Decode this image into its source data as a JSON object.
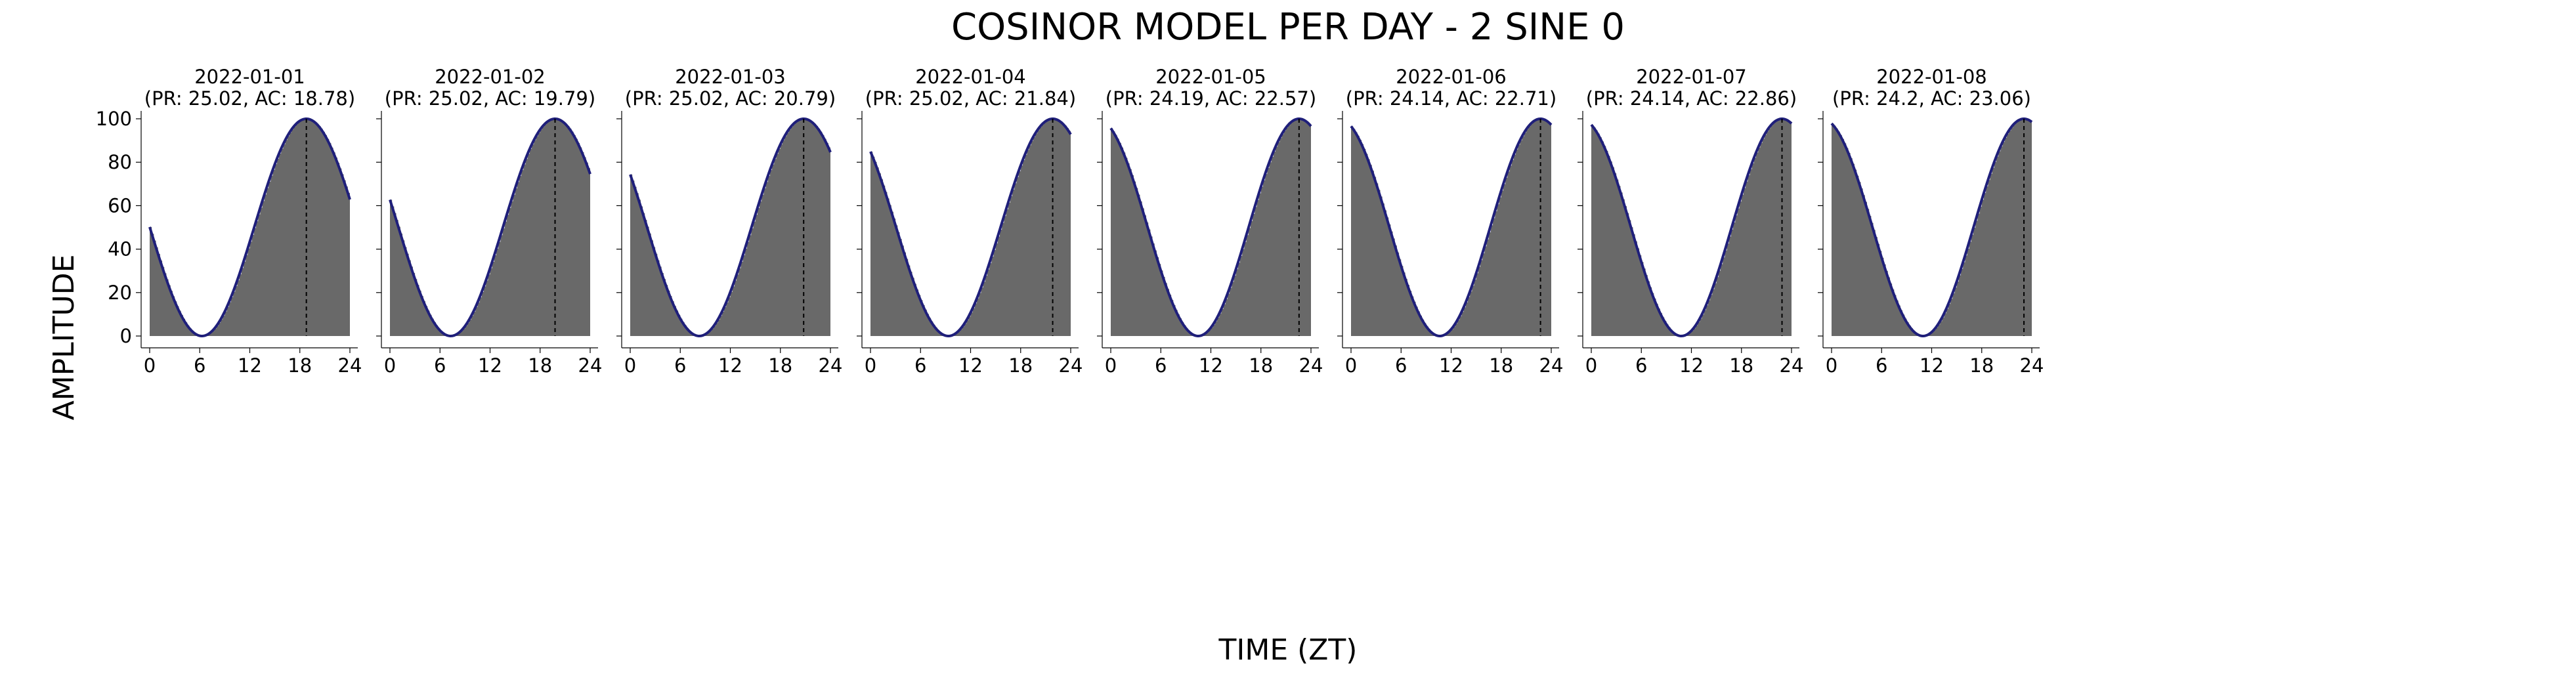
{
  "chart_data": {
    "type": "area",
    "title": "COSINOR MODEL PER DAY - 2 SINE 0",
    "xlabel": "TIME (ZT)",
    "ylabel": "AMPLITUDE",
    "xlim": [
      0,
      24
    ],
    "ylim": [
      0,
      100
    ],
    "xticks": [
      0,
      6,
      12,
      18,
      24
    ],
    "yticks": [
      0,
      20,
      40,
      60,
      80,
      100
    ],
    "grid": false,
    "colors": {
      "fill": "#696969",
      "curve": "#1f1f7a",
      "acrophase_line": "#000000"
    },
    "panels": [
      {
        "date": "2022-01-01",
        "subtitle": "(PR: 25.02, AC: 18.78)",
        "period": 25.02,
        "acrophase": 18.78,
        "amplitude": 100
      },
      {
        "date": "2022-01-02",
        "subtitle": "(PR: 25.02, AC: 19.79)",
        "period": 25.02,
        "acrophase": 19.79,
        "amplitude": 100
      },
      {
        "date": "2022-01-03",
        "subtitle": "(PR: 25.02, AC: 20.79)",
        "period": 25.02,
        "acrophase": 20.79,
        "amplitude": 100
      },
      {
        "date": "2022-01-04",
        "subtitle": "(PR: 25.02, AC: 21.84)",
        "period": 25.02,
        "acrophase": 21.84,
        "amplitude": 100
      },
      {
        "date": "2022-01-05",
        "subtitle": "(PR: 24.19, AC: 22.57)",
        "period": 24.19,
        "acrophase": 22.57,
        "amplitude": 100
      },
      {
        "date": "2022-01-06",
        "subtitle": "(PR: 24.14, AC: 22.71)",
        "period": 24.14,
        "acrophase": 22.71,
        "amplitude": 100
      },
      {
        "date": "2022-01-07",
        "subtitle": "(PR: 24.14, AC: 22.86)",
        "period": 24.14,
        "acrophase": 22.86,
        "amplitude": 100
      },
      {
        "date": "2022-01-08",
        "subtitle": "(PR: 24.2, AC: 23.06)",
        "period": 24.2,
        "acrophase": 23.06,
        "amplitude": 100
      }
    ]
  }
}
